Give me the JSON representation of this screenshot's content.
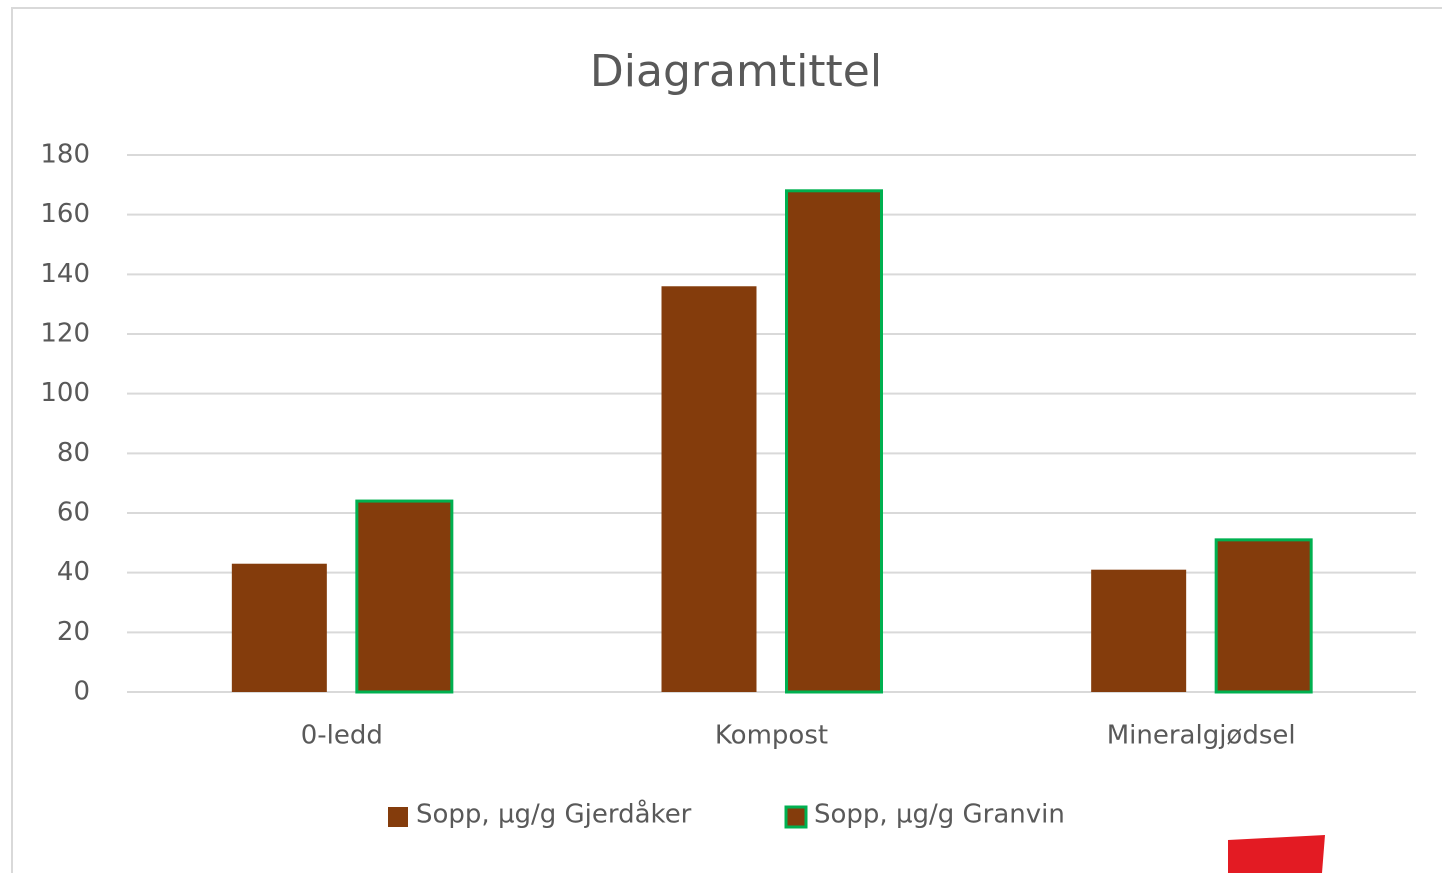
{
  "chart_data": {
    "type": "bar",
    "title": "Diagramtittel",
    "categories": [
      "0-ledd",
      "Kompost",
      "Mineralgjødsel"
    ],
    "series": [
      {
        "name": "Sopp, µg/g Gjerdåker",
        "color": "#843c0c",
        "values": [
          43,
          136,
          41
        ]
      },
      {
        "name": "Sopp, µg/g Granvin",
        "color": "#843c0c",
        "edgecolor": "#00b050",
        "values": [
          64,
          168,
          51
        ]
      }
    ],
    "ylim": [
      0,
      180
    ],
    "yticks": [
      0,
      20,
      40,
      60,
      80,
      100,
      120,
      140,
      160,
      180
    ],
    "grid": true,
    "legend": "bottom"
  }
}
